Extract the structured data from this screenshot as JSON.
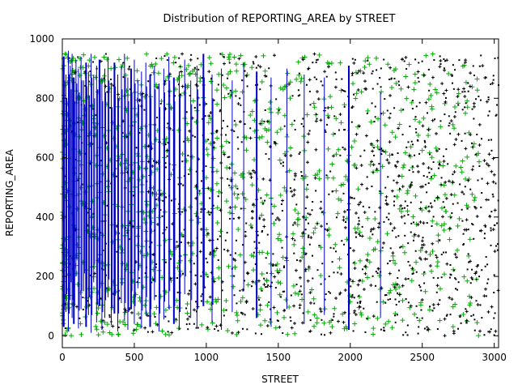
{
  "chart_data": {
    "type": "scatter",
    "title": "Distribution of REPORTING_AREA by STREET",
    "xlabel": "STREET",
    "ylabel": "REPORTING_AREA",
    "xlim": [
      0,
      3030
    ],
    "ylim": [
      -40,
      1000
    ],
    "xticks": [
      0,
      500,
      1000,
      1500,
      2000,
      2500,
      3000
    ],
    "yticks": [
      0,
      200,
      400,
      600,
      800,
      1000
    ],
    "grid": false,
    "legend": "none",
    "colors": {
      "line": "#0000cc",
      "cross": "#00aa00",
      "dot": "#000000"
    },
    "series": [
      {
        "style": "vertical-lines",
        "x": [
          10,
          25,
          42,
          55,
          68,
          80,
          95,
          112,
          130,
          148,
          165,
          182,
          200,
          218,
          238,
          258,
          275,
          295,
          318,
          340,
          362,
          385,
          410,
          432,
          455,
          478,
          500,
          525,
          550,
          580,
          610,
          640,
          672,
          705,
          740,
          775,
          812,
          850,
          892,
          935,
          980,
          1040,
          1105,
          1180,
          1260,
          1350,
          1450,
          1560,
          1680,
          1820,
          1990,
          2210
        ],
        "y_low": [
          30,
          80,
          15,
          120,
          60,
          40,
          200,
          25,
          90,
          150,
          30,
          70,
          10,
          180,
          45,
          100,
          20,
          60,
          130,
          35,
          75,
          15,
          110,
          50,
          20,
          90,
          40,
          160,
          25,
          70,
          30,
          120,
          15,
          55,
          90,
          40,
          20,
          140,
          60,
          30,
          100,
          45,
          20,
          80,
          150,
          60,
          30,
          90,
          40,
          70,
          20,
          60
        ],
        "y_high": [
          940,
          880,
          960,
          910,
          950,
          870,
          930,
          900,
          940,
          860,
          920,
          890,
          950,
          880,
          910,
          930,
          870,
          900,
          940,
          850,
          920,
          880,
          910,
          950,
          870,
          900,
          930,
          860,
          890,
          920,
          880,
          910,
          850,
          900,
          940,
          870,
          890,
          930,
          860,
          910,
          950,
          880,
          900,
          860,
          920,
          890,
          870,
          900,
          880,
          870,
          910,
          820
        ]
      },
      {
        "style": "crosses",
        "count": 1100,
        "x_range": [
          0,
          2900
        ],
        "y_range": [
          0,
          950
        ],
        "density": "higher toward low STREET values"
      },
      {
        "style": "dots",
        "count": 1400,
        "x_range": [
          0,
          3030
        ],
        "y_range": [
          0,
          950
        ],
        "density": "higher toward high STREET values"
      }
    ]
  }
}
